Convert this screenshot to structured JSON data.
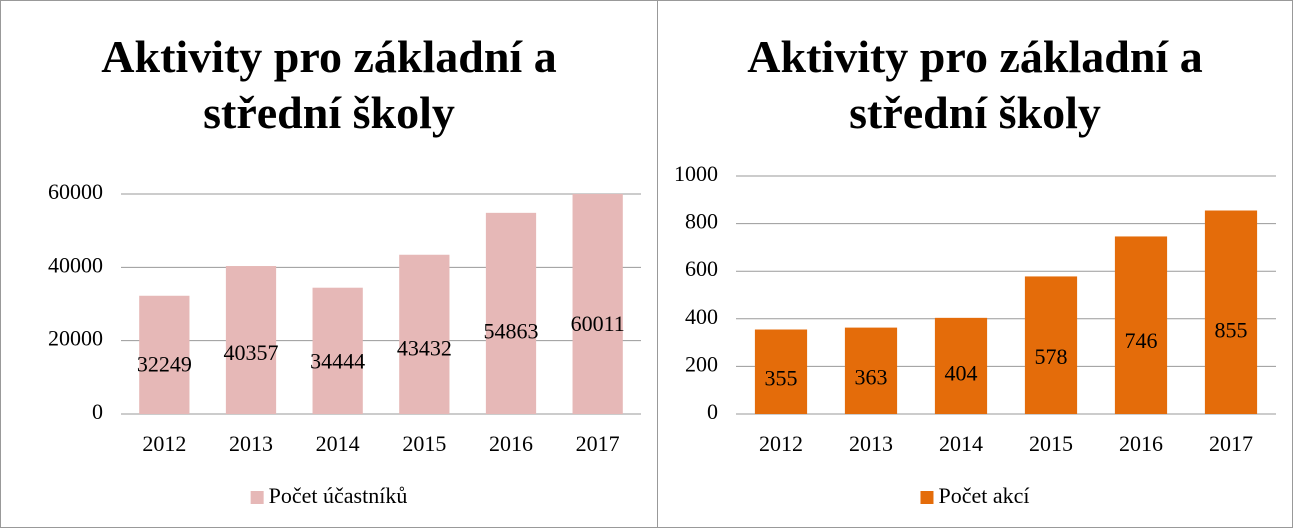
{
  "chart_data": [
    {
      "type": "bar",
      "title": "Aktivity pro základní a střední školy",
      "categories": [
        "2012",
        "2013",
        "2014",
        "2015",
        "2016",
        "2017"
      ],
      "series": [
        {
          "name": "Počet účastníků",
          "color": "#e6b8b7",
          "values": [
            32249,
            40357,
            34444,
            43432,
            54863,
            60011
          ]
        }
      ],
      "ylim": [
        0,
        60000
      ],
      "yticks": [
        0,
        20000,
        40000,
        60000
      ],
      "grid": true,
      "legend": "bottom"
    },
    {
      "type": "bar",
      "title": "Aktivity pro základní a střední školy",
      "categories": [
        "2012",
        "2013",
        "2014",
        "2015",
        "2016",
        "2017"
      ],
      "series": [
        {
          "name": "Počet akcí",
          "color": "#e46c0a",
          "values": [
            355,
            363,
            404,
            578,
            746,
            855
          ]
        }
      ],
      "ylim": [
        0,
        1000
      ],
      "yticks": [
        0,
        200,
        400,
        600,
        800,
        1000
      ],
      "grid": true,
      "legend": "bottom"
    }
  ]
}
